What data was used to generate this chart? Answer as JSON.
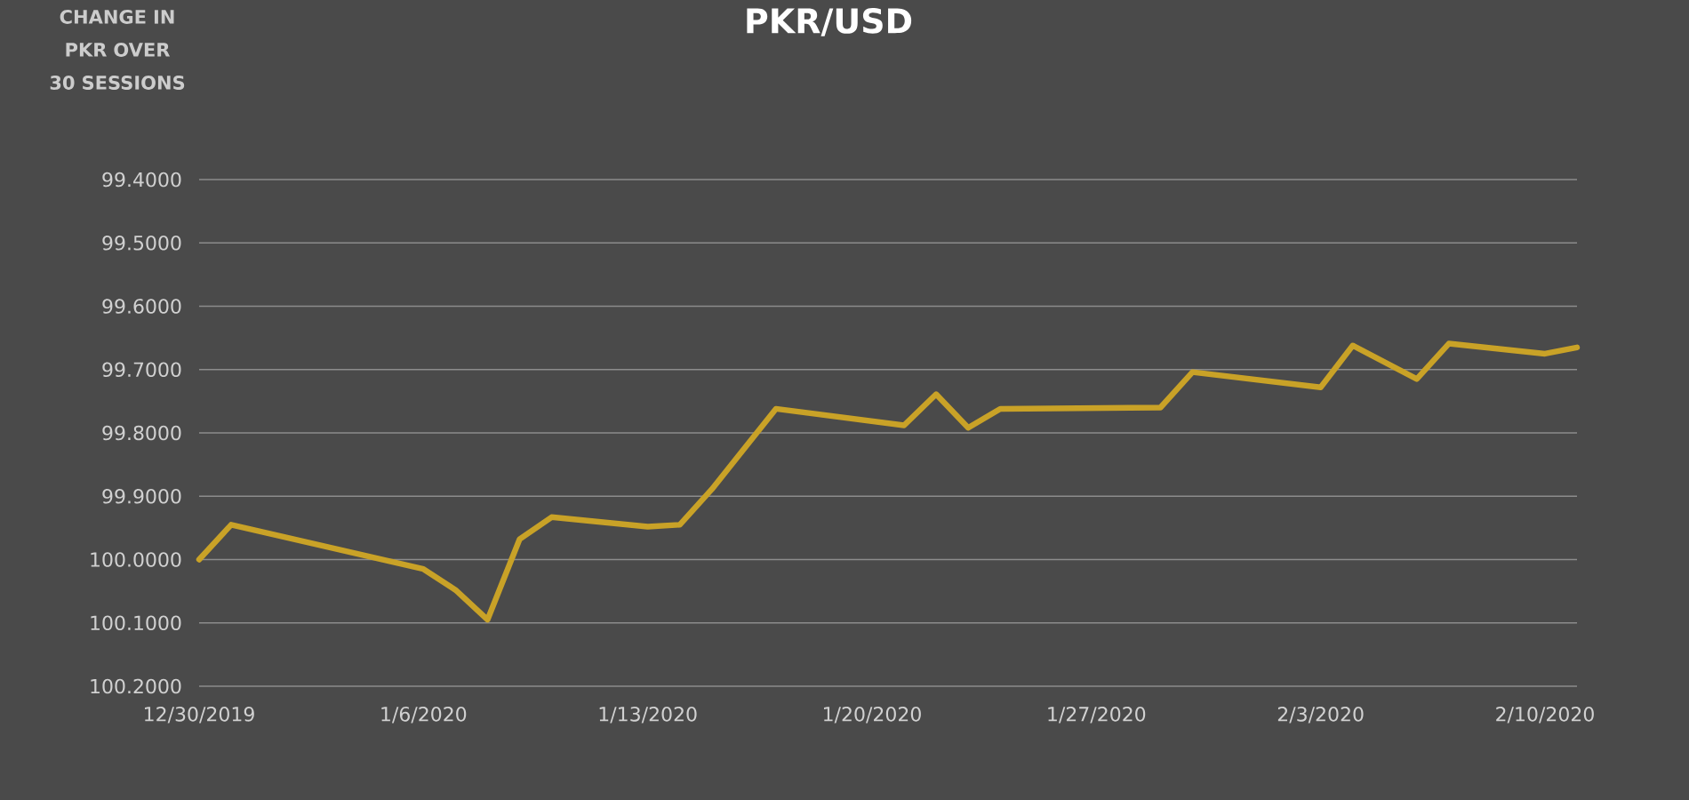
{
  "chart_data": {
    "type": "line",
    "title": "PKR/USD",
    "ylabel": "CHANGE IN PKR OVER 30 SESSIONS",
    "x": [
      "2019-12-30",
      "2019-12-31",
      "2020-01-06",
      "2020-01-07",
      "2020-01-08",
      "2020-01-09",
      "2020-01-10",
      "2020-01-13",
      "2020-01-14",
      "2020-01-15",
      "2020-01-17",
      "2020-01-21",
      "2020-01-22",
      "2020-01-23",
      "2020-01-24",
      "2020-01-29",
      "2020-01-30",
      "2020-02-03",
      "2020-02-04",
      "2020-02-06",
      "2020-02-07",
      "2020-02-10",
      "2020-02-11"
    ],
    "series": [
      {
        "color": "#c9a227",
        "values": [
          100.0,
          99.945,
          100.015,
          100.048,
          100.095,
          99.968,
          99.933,
          99.948,
          99.945,
          99.889,
          99.762,
          99.788,
          99.739,
          99.792,
          99.762,
          99.76,
          99.704,
          99.728,
          99.662,
          99.715,
          99.659,
          99.675,
          99.665
        ]
      }
    ],
    "xlim": [
      "2019-12-30",
      "2020-02-11"
    ],
    "xticks": [
      {
        "value": "2019-12-30",
        "label": "12/30/2019"
      },
      {
        "value": "2020-01-06",
        "label": "1/6/2020"
      },
      {
        "value": "2020-01-13",
        "label": "1/13/2020"
      },
      {
        "value": "2020-01-20",
        "label": "1/20/2020"
      },
      {
        "value": "2020-01-27",
        "label": "1/27/2020"
      },
      {
        "value": "2020-02-03",
        "label": "2/3/2020"
      },
      {
        "value": "2020-02-10",
        "label": "2/10/2020"
      }
    ],
    "ylim": [
      100.2,
      99.4
    ],
    "yticks": [
      {
        "value": 99.4,
        "label": "99.4000"
      },
      {
        "value": 99.5,
        "label": "99.5000"
      },
      {
        "value": 99.6,
        "label": "99.6000"
      },
      {
        "value": 99.7,
        "label": "99.7000"
      },
      {
        "value": 99.8,
        "label": "99.8000"
      },
      {
        "value": 99.9,
        "label": "99.9000"
      },
      {
        "value": 100.0,
        "label": "100.0000"
      },
      {
        "value": 100.1,
        "label": "100.1000"
      },
      {
        "value": 100.2,
        "label": "100.2000"
      }
    ],
    "grid": "y",
    "line_style": "solid"
  }
}
